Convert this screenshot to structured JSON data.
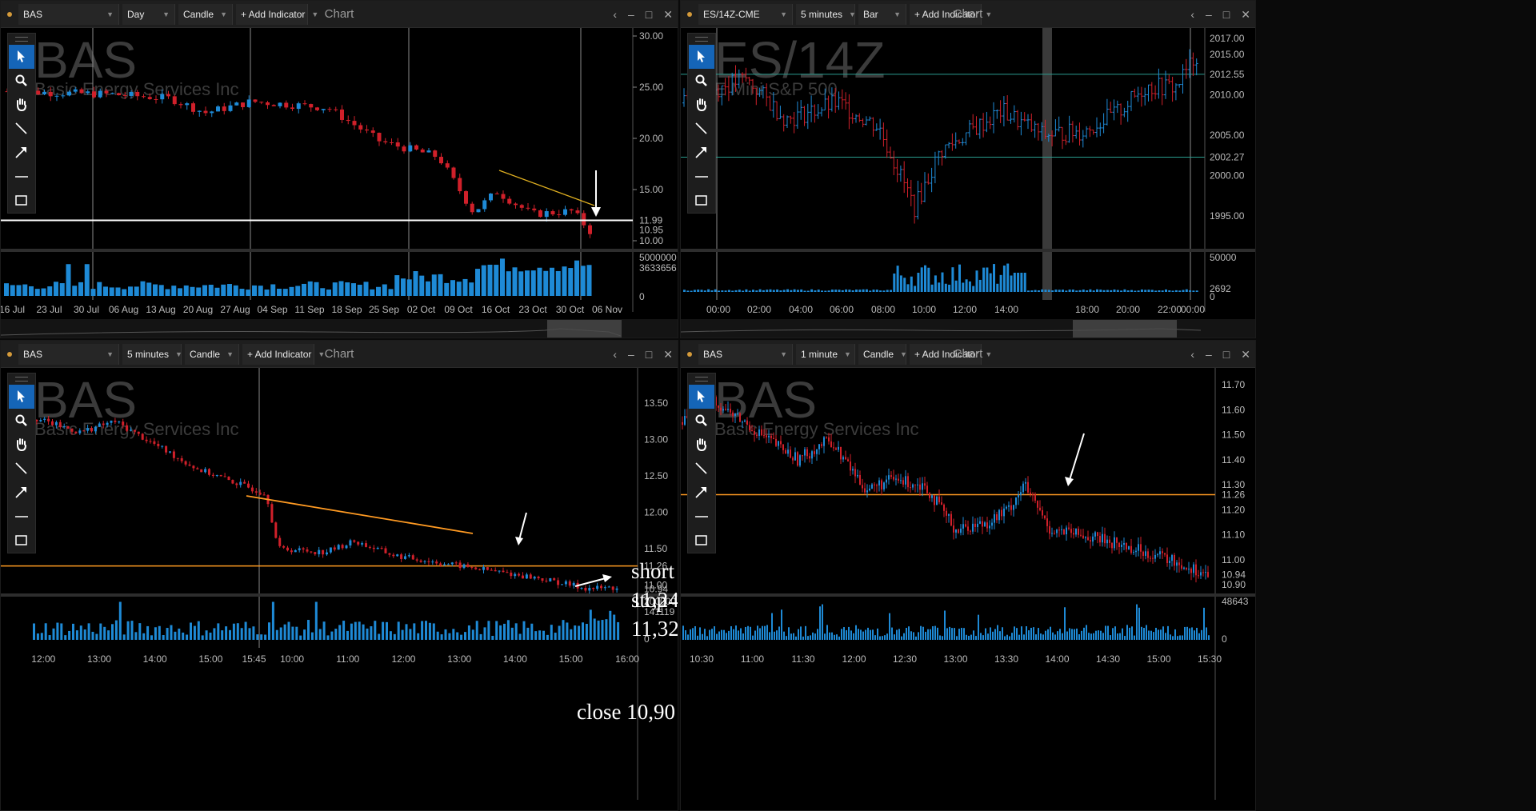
{
  "panels": [
    {
      "id": "p1",
      "symbol": "BAS",
      "interval": "Day",
      "style": "Candle",
      "add_indicator": "+ Add Indicator",
      "title": "Chart",
      "watermark_symbol": "BAS",
      "watermark_name": "Basic Energy Services Inc",
      "price_ticks": [
        "30.00",
        "25.00",
        "20.00",
        "15.00",
        "10.00"
      ],
      "price_markers": [
        {
          "text": "11.99",
          "color": "#ffffff"
        },
        {
          "text": "10.95",
          "color": "#e03030"
        }
      ],
      "volume_ticks": [
        "5000000",
        "3633656",
        "0"
      ],
      "time_ticks": [
        "16 Jul",
        "23 Jul",
        "30 Jul",
        "06 Aug",
        "13 Aug",
        "20 Aug",
        "27 Aug",
        "04 Sep",
        "11 Sep",
        "18 Sep",
        "25 Sep",
        "02 Oct",
        "09 Oct",
        "16 Oct",
        "23 Oct",
        "30 Oct",
        "06 Nov"
      ]
    },
    {
      "id": "p2",
      "symbol": "ES/14Z-CME",
      "interval": "5 minutes",
      "style": "Bar",
      "add_indicator": "+ Add Indicator",
      "title": "Chart",
      "watermark_symbol": "ES/14Z",
      "watermark_name": "E Mini S&P 500",
      "price_ticks": [
        "2017.00",
        "2015.00",
        "2012.55",
        "2010.00",
        "2005.00",
        "2002.27",
        "2000.00",
        "1995.00"
      ],
      "volume_ticks": [
        "50000",
        "2692",
        "0"
      ],
      "time_ticks": [
        "00:00",
        "02:00",
        "04:00",
        "06:00",
        "08:00",
        "10:00",
        "12:00",
        "14:00",
        "18:00",
        "20:00",
        "22:00",
        "00:00"
      ]
    },
    {
      "id": "p3",
      "symbol": "BAS",
      "interval": "5 minutes",
      "style": "Candle",
      "add_indicator": "+ Add Indicator",
      "title": "Chart",
      "watermark_symbol": "BAS",
      "watermark_name": "Basic Energy Services Inc",
      "price_ticks": [
        "13.50",
        "13.00",
        "12.50",
        "12.00",
        "11.50",
        "11.26",
        "11.00",
        "10.94"
      ],
      "volume_ticks": [
        "200000",
        "141119",
        "0"
      ],
      "time_ticks": [
        "12:00",
        "13:00",
        "14:00",
        "15:00",
        "15:45",
        "10:00",
        "11:00",
        "12:00",
        "13:00",
        "14:00",
        "15:00",
        "16:00"
      ],
      "annotations": {
        "short": "short 11,24",
        "stop": "stop 11,32",
        "close": "close 10,90"
      }
    },
    {
      "id": "p4",
      "symbol": "BAS",
      "interval": "1 minute",
      "style": "Candle",
      "add_indicator": "+ Add Indicator",
      "title": "Chart",
      "watermark_symbol": "BAS",
      "watermark_name": "Basic Energy Services Inc",
      "price_ticks": [
        "11.70",
        "11.60",
        "11.50",
        "11.40",
        "11.30",
        "11.26",
        "11.20",
        "11.10",
        "11.00",
        "10.94",
        "10.90"
      ],
      "volume_ticks": [
        "48643",
        "0"
      ],
      "time_ticks": [
        "10:30",
        "11:00",
        "11:30",
        "12:00",
        "12:30",
        "13:00",
        "13:30",
        "14:00",
        "14:30",
        "15:00",
        "15:30"
      ]
    }
  ],
  "colors": {
    "up": "#1e8ad6",
    "down": "#d0202a",
    "orange": "#ff9a22",
    "teal": "#2a9d8f",
    "white": "#ffffff",
    "selected_tool": "#1565b8"
  },
  "tools": [
    "pointer-icon",
    "zoom-icon",
    "pan-hand-icon",
    "line-tool-icon",
    "arrow-tool-icon",
    "horizontal-line-icon",
    "rectangle-tool-icon"
  ],
  "window_controls": [
    "chevron-left-icon",
    "minimize-icon",
    "maximize-icon",
    "close-icon"
  ]
}
